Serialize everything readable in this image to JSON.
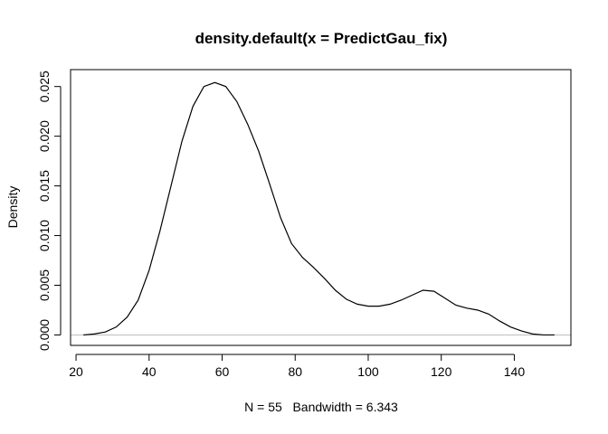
{
  "chart_data": {
    "type": "line",
    "title": "density.default(x = PredictGau_fix)",
    "xlabel": "N = 55   Bandwidth = 6.343",
    "ylabel": "Density",
    "xlim": [
      18.5,
      155.5
    ],
    "ylim": [
      -0.00105,
      0.0267
    ],
    "x_ticks": [
      20,
      40,
      60,
      80,
      100,
      120,
      140
    ],
    "y_ticks": [
      0.0,
      0.005,
      0.01,
      0.015,
      0.02,
      0.025
    ],
    "x_tick_labels": [
      "20",
      "40",
      "60",
      "80",
      "100",
      "120",
      "140"
    ],
    "y_tick_labels": [
      "0.000",
      "0.005",
      "0.010",
      "0.015",
      "0.020",
      "0.025"
    ],
    "baseline": 0,
    "baseline_color": "#bebebe",
    "line_color": "#000000",
    "series": [
      {
        "x": [
          22,
          25,
          28,
          31,
          34,
          37,
          40,
          43,
          46,
          49,
          52,
          55,
          58,
          61,
          64,
          67,
          70,
          73,
          76,
          79,
          82,
          85,
          88,
          91,
          94,
          97,
          100,
          103,
          106,
          109,
          112,
          115,
          118,
          121,
          124,
          127,
          130,
          133,
          136,
          139,
          142,
          145,
          148,
          151
        ],
        "y": [
          0.0,
          0.0001,
          0.0003,
          0.0008,
          0.0018,
          0.0035,
          0.0065,
          0.0105,
          0.015,
          0.0195,
          0.023,
          0.025,
          0.0254,
          0.025,
          0.0235,
          0.0212,
          0.0185,
          0.0152,
          0.0118,
          0.0092,
          0.0078,
          0.0068,
          0.0057,
          0.0045,
          0.0036,
          0.0031,
          0.0029,
          0.0029,
          0.0031,
          0.0035,
          0.004,
          0.0045,
          0.0044,
          0.0037,
          0.003,
          0.0027,
          0.0025,
          0.0021,
          0.0014,
          0.0008,
          0.0004,
          0.0001,
          0.0,
          0.0
        ]
      }
    ]
  }
}
